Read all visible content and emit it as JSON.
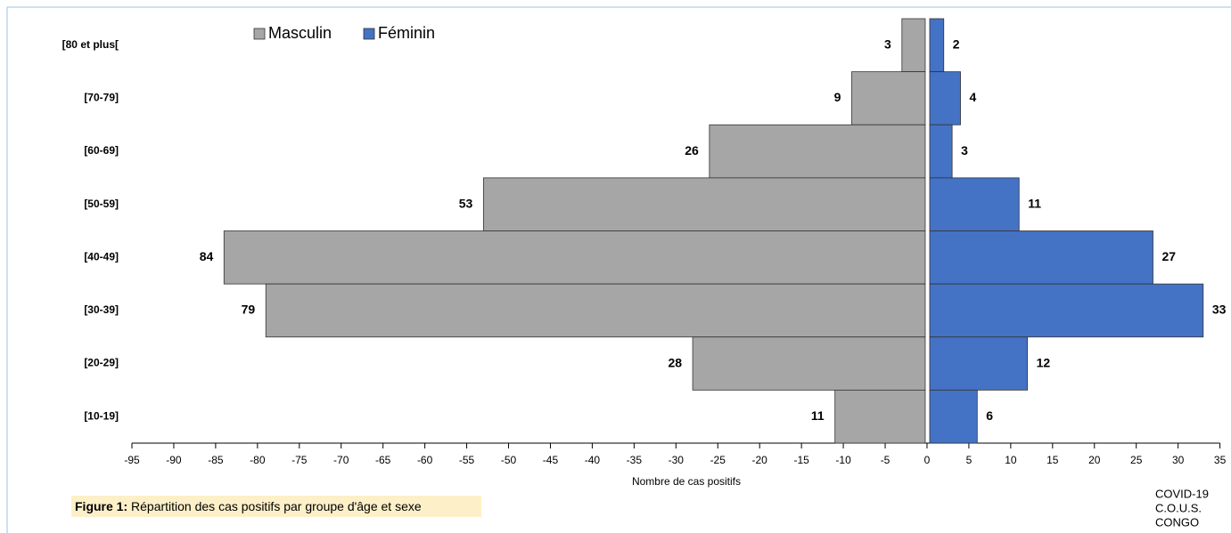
{
  "chart_data": {
    "type": "pyramid",
    "categories": [
      "[80 et plus[",
      "[70-79]",
      "[60-69]",
      "[50-59]",
      "[40-49]",
      "[30-39]",
      "[20-29]",
      "[10-19]"
    ],
    "series": [
      {
        "name": "Masculin",
        "color": "#a6a6a6",
        "values": [
          -3,
          -9,
          -26,
          -53,
          -84,
          -79,
          -28,
          -11
        ],
        "value_labels": [
          "3",
          "9",
          "26",
          "53",
          "84",
          "79",
          "28",
          "11"
        ]
      },
      {
        "name": "Féminin",
        "color": "#4472c4",
        "values": [
          2,
          4,
          3,
          11,
          27,
          33,
          12,
          6
        ]
      }
    ],
    "x_label": "Nombre de cas positifs",
    "xlim": [
      -95,
      35
    ],
    "xticks": [
      -95,
      -90,
      -85,
      -80,
      -75,
      -70,
      -65,
      -60,
      -55,
      -50,
      -45,
      -40,
      -35,
      -30,
      -25,
      -20,
      -15,
      -10,
      -5,
      0,
      5,
      10,
      15,
      20,
      25,
      30,
      35
    ],
    "caption_label": "Figure 1:",
    "caption": " Répartition des cas positifs par groupe d'âge et sexe",
    "source": [
      "COVID-19",
      "C.O.U.S.",
      "CONGO"
    ]
  }
}
